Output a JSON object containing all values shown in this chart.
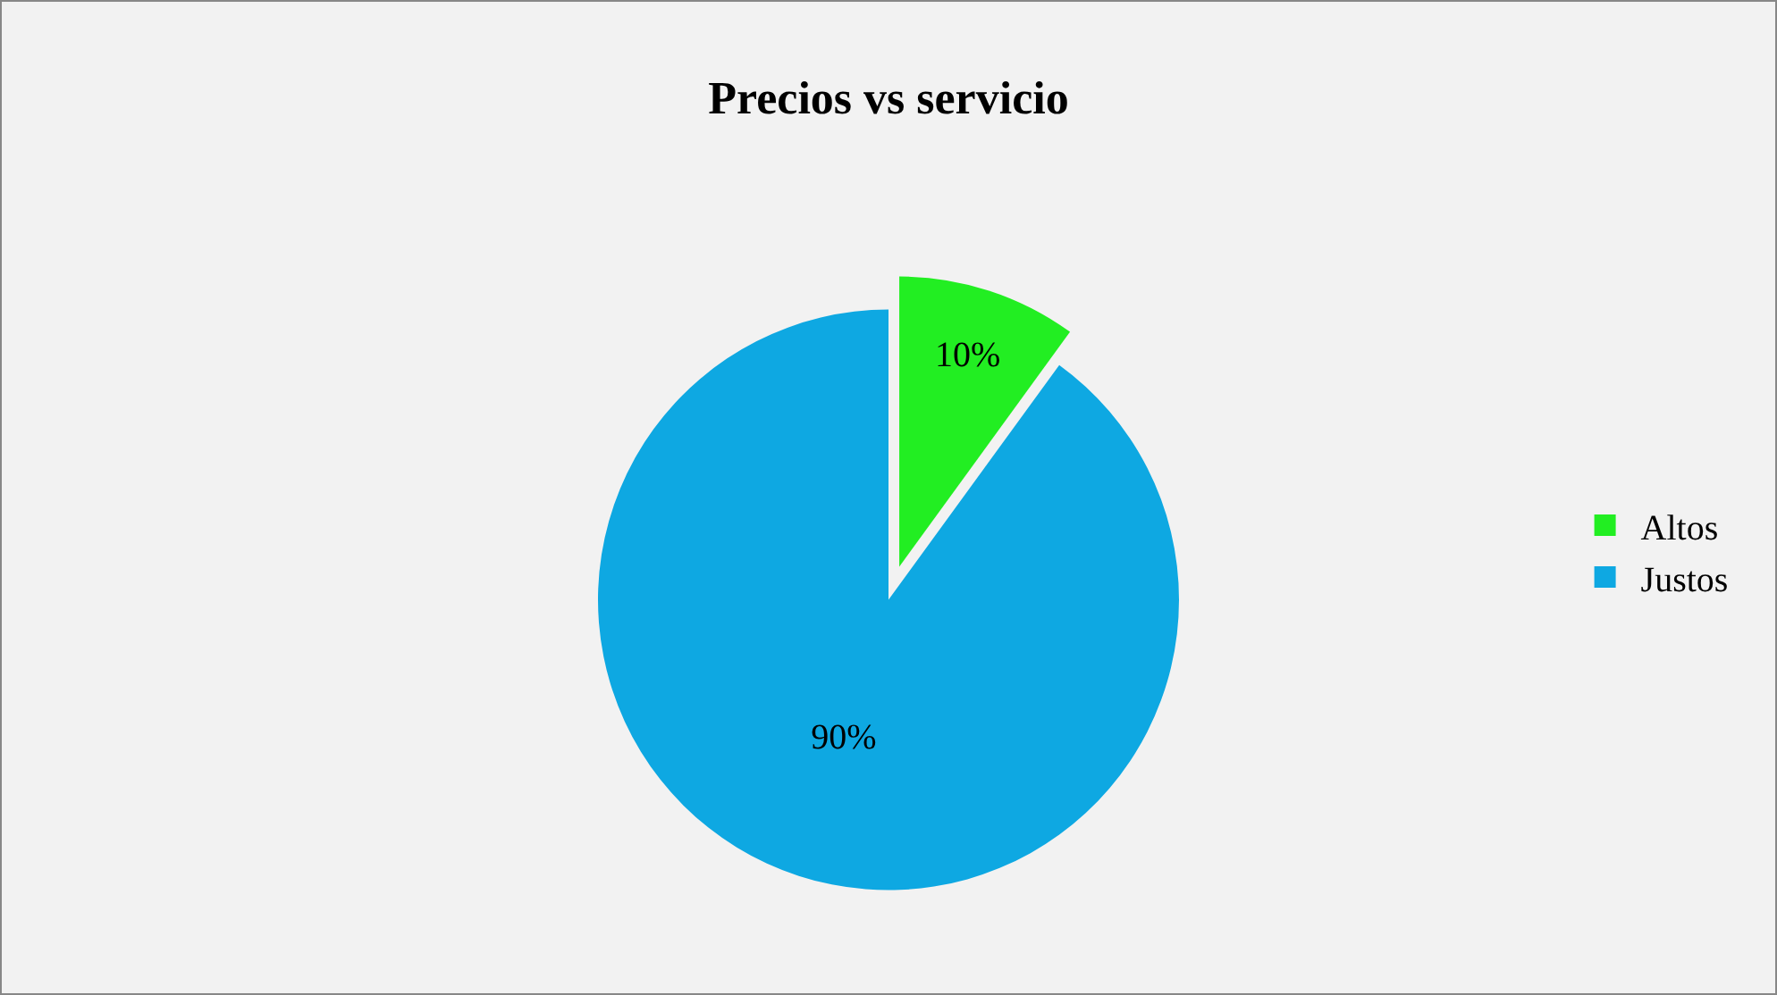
{
  "chart_data": {
    "type": "pie",
    "title": "Precios vs servicio",
    "categories": [
      "Altos",
      "Justos"
    ],
    "values": [
      10,
      90
    ],
    "colors": [
      "#22ee22",
      "#0ea8e2"
    ],
    "value_labels": [
      "10%",
      "90%"
    ],
    "legend": "right"
  }
}
